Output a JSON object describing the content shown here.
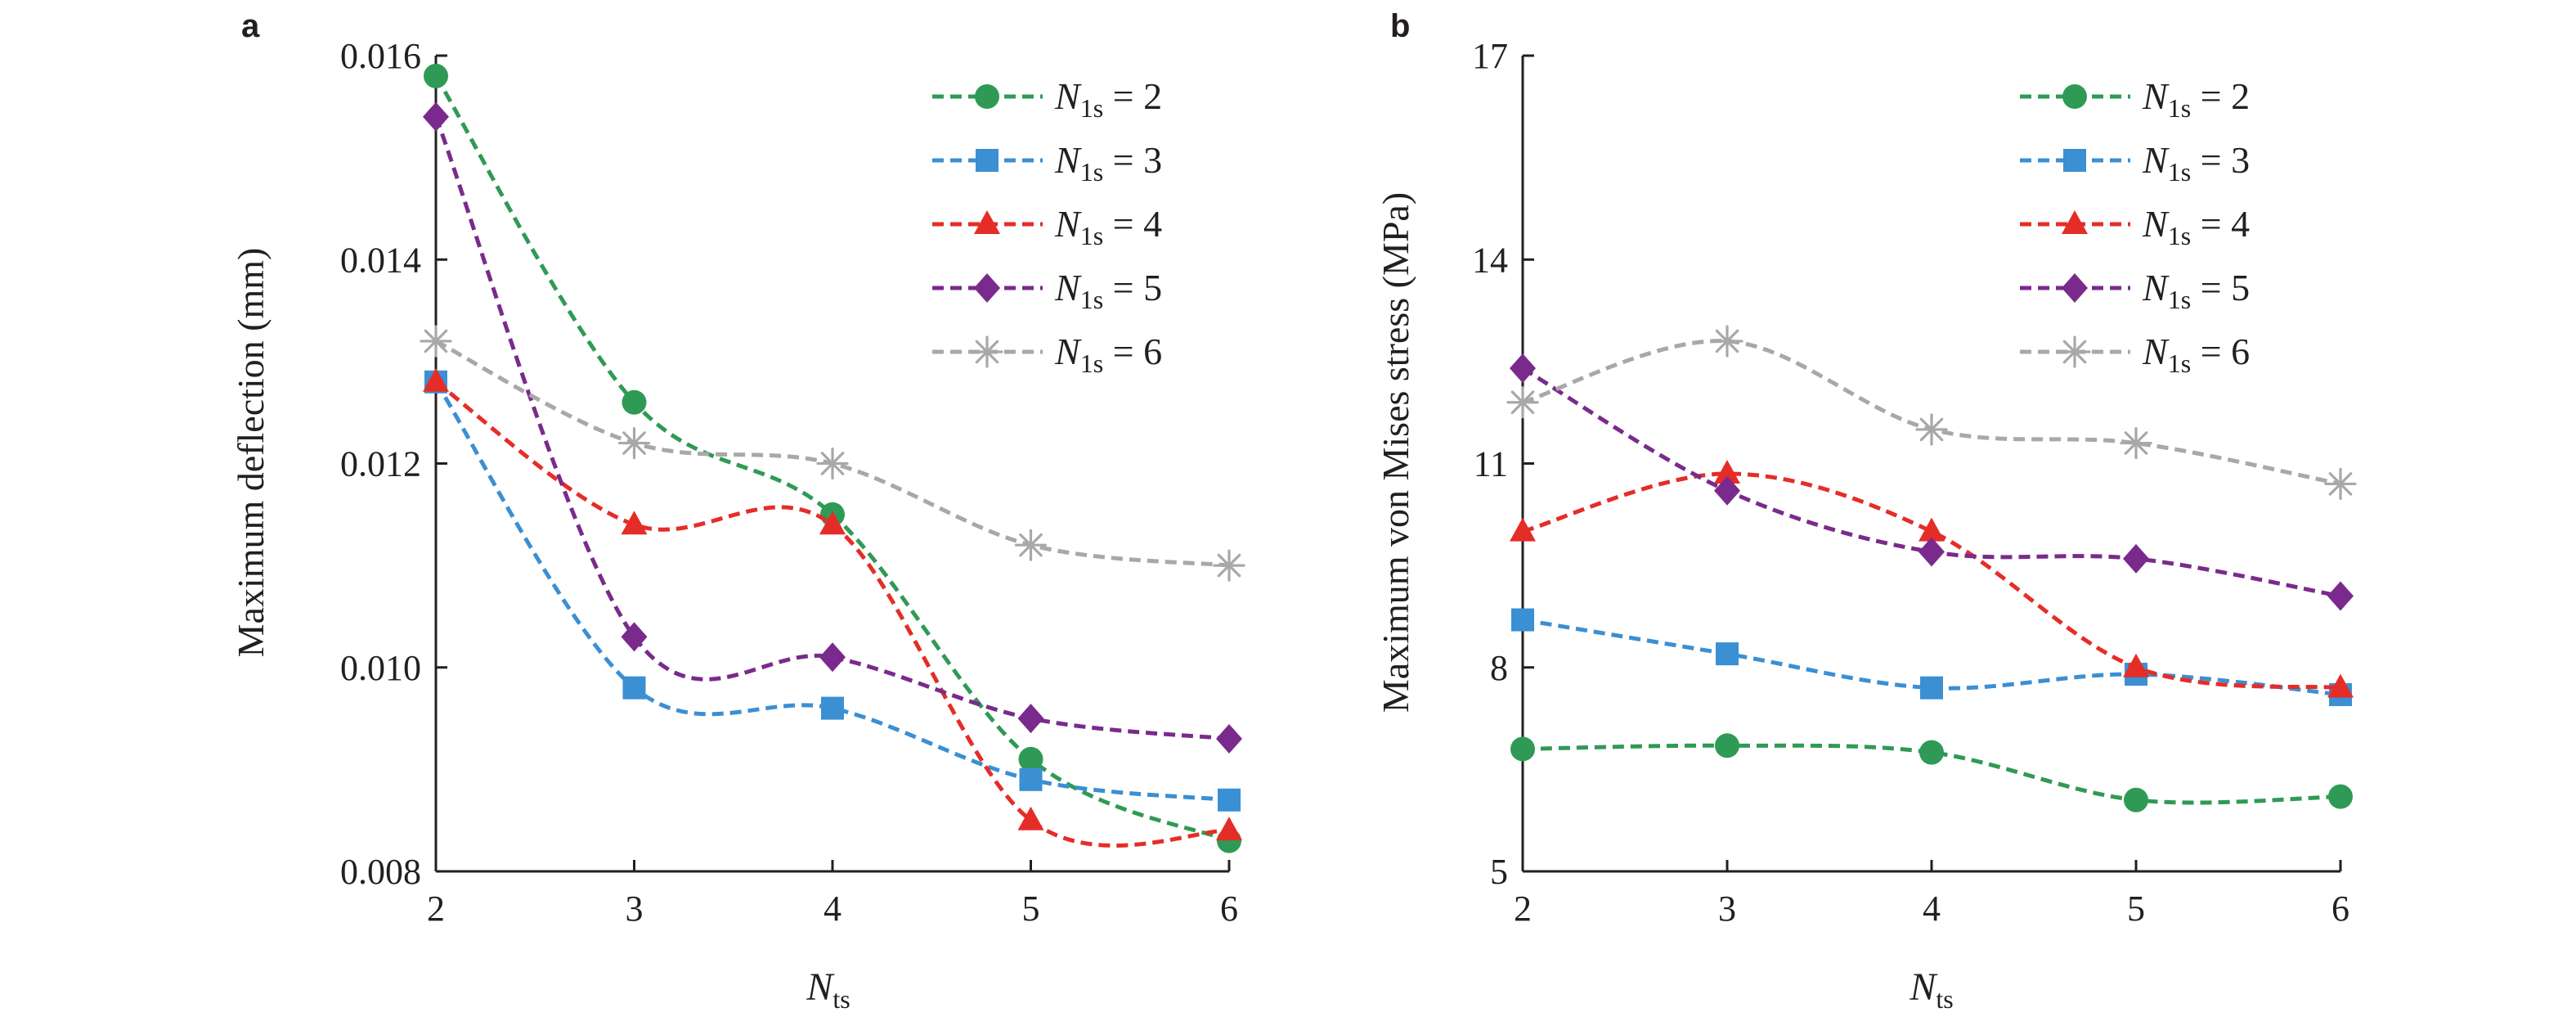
{
  "chart_data": [
    {
      "panel_label": "a",
      "type": "line",
      "xlabel_main": "N",
      "xlabel_sub": "ts",
      "ylabel": "Maximum deflection (mm)",
      "x": [
        2,
        3,
        4,
        5,
        6
      ],
      "xlim": [
        2,
        6
      ],
      "ylim": [
        0.008,
        0.016
      ],
      "yticks": [
        "0.008",
        "0.010",
        "0.012",
        "0.014",
        "0.016"
      ],
      "ytick_values": [
        0.008,
        0.01,
        0.012,
        0.014,
        0.016
      ],
      "xticks": [
        "2",
        "3",
        "4",
        "5",
        "6"
      ],
      "legend_position": "top-right",
      "grid": false,
      "line_style": "dashed smooth",
      "series": [
        {
          "legend_main": "N",
          "legend_sub": "1s",
          "legend_tail": " = 2",
          "marker": "circle",
          "color": "#2f9a55",
          "values": [
            0.0158,
            0.0126,
            0.0115,
            0.0091,
            0.0083
          ]
        },
        {
          "legend_main": "N",
          "legend_sub": "1s",
          "legend_tail": " = 3",
          "marker": "square",
          "color": "#3b8fd3",
          "values": [
            0.0128,
            0.0098,
            0.0096,
            0.0089,
            0.0087
          ]
        },
        {
          "legend_main": "N",
          "legend_sub": "1s",
          "legend_tail": " = 4",
          "marker": "triangle",
          "color": "#e52d27",
          "values": [
            0.0128,
            0.0114,
            0.0114,
            0.0085,
            0.0084
          ]
        },
        {
          "legend_main": "N",
          "legend_sub": "1s",
          "legend_tail": " = 5",
          "marker": "diamond",
          "color": "#7a2a8c",
          "values": [
            0.0154,
            0.0103,
            0.0101,
            0.0095,
            0.0093
          ]
        },
        {
          "legend_main": "N",
          "legend_sub": "1s",
          "legend_tail": " = 6",
          "marker": "asterisk",
          "color": "#a8a8a8",
          "values": [
            0.0132,
            0.0122,
            0.012,
            0.0112,
            0.011
          ]
        }
      ]
    },
    {
      "panel_label": "b",
      "type": "line",
      "xlabel_main": "N",
      "xlabel_sub": "ts",
      "ylabel": "Maximum von Mises stress (MPa)",
      "x": [
        2,
        3,
        4,
        5,
        6
      ],
      "xlim": [
        2,
        6
      ],
      "ylim": [
        5,
        17
      ],
      "yticks": [
        "5",
        "8",
        "11",
        "14",
        "17"
      ],
      "ytick_values": [
        5,
        8,
        11,
        14,
        17
      ],
      "xticks": [
        "2",
        "3",
        "4",
        "5",
        "6"
      ],
      "legend_position": "top-right",
      "grid": false,
      "line_style": "dashed smooth",
      "series": [
        {
          "legend_main": "N",
          "legend_sub": "1s",
          "legend_tail": " = 2",
          "marker": "circle",
          "color": "#2f9a55",
          "values": [
            6.8,
            6.85,
            6.75,
            6.05,
            6.1
          ]
        },
        {
          "legend_main": "N",
          "legend_sub": "1s",
          "legend_tail": " = 3",
          "marker": "square",
          "color": "#3b8fd3",
          "values": [
            8.7,
            8.2,
            7.7,
            7.9,
            7.6
          ]
        },
        {
          "legend_main": "N",
          "legend_sub": "1s",
          "legend_tail": " = 4",
          "marker": "triangle",
          "color": "#e52d27",
          "values": [
            10.0,
            10.85,
            10.0,
            8.0,
            7.7
          ]
        },
        {
          "legend_main": "N",
          "legend_sub": "1s",
          "legend_tail": " = 5",
          "marker": "diamond",
          "color": "#7a2a8c",
          "values": [
            12.4,
            10.6,
            9.7,
            9.6,
            9.05
          ]
        },
        {
          "legend_main": "N",
          "legend_sub": "1s",
          "legend_tail": " = 6",
          "marker": "asterisk",
          "color": "#a8a8a8",
          "values": [
            11.9,
            12.8,
            11.5,
            11.3,
            10.7
          ]
        }
      ]
    }
  ]
}
